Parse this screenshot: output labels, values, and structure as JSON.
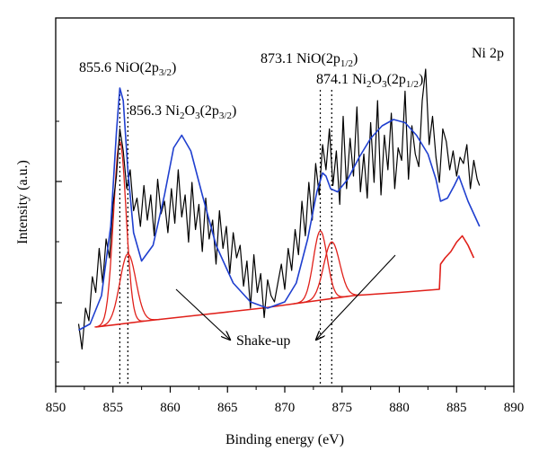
{
  "chart_data": {
    "type": "line",
    "xlabel": "Binding energy (eV)",
    "ylabel": "Intensity (a.u.)",
    "panel_label": "Ni 2p",
    "xlim": [
      850,
      890
    ],
    "x_ticks": [
      850,
      855,
      860,
      865,
      870,
      875,
      880,
      885,
      890
    ],
    "x_tick_labels": [
      "850",
      "855",
      "860",
      "865",
      "870",
      "875",
      "880",
      "885",
      "890"
    ],
    "y_ticks": [
      1,
      2,
      3
    ],
    "ylim": [
      0,
      1
    ],
    "grid": false,
    "legend": "none",
    "colors": {
      "raw": "#000000",
      "envelope": "#1f3fcf",
      "components": "#e0201a",
      "background": "#e0201a"
    },
    "series": [
      {
        "name": "",
        "role": "raw-data",
        "color": "#000000",
        "x": [
          852.0,
          852.3,
          852.6,
          852.9,
          853.2,
          853.5,
          853.8,
          854.1,
          854.4,
          854.7,
          855.0,
          855.3,
          855.6,
          855.9,
          856.2,
          856.5,
          856.8,
          857.1,
          857.4,
          857.7,
          858.0,
          858.3,
          858.6,
          858.9,
          859.2,
          859.5,
          859.8,
          860.1,
          860.4,
          860.7,
          861.0,
          861.3,
          861.6,
          861.9,
          862.2,
          862.5,
          862.8,
          863.1,
          863.4,
          863.7,
          864.0,
          864.3,
          864.6,
          864.9,
          865.2,
          865.5,
          865.8,
          866.1,
          866.4,
          866.7,
          867.0,
          867.3,
          867.6,
          867.9,
          868.2,
          868.5,
          868.8,
          869.1,
          869.4,
          869.7,
          870.0,
          870.3,
          870.6,
          870.9,
          871.2,
          871.5,
          871.8,
          872.1,
          872.4,
          872.7,
          873.0,
          873.3,
          873.6,
          873.9,
          874.2,
          874.5,
          874.8,
          875.1,
          875.4,
          875.7,
          876.0,
          876.3,
          876.6,
          876.9,
          877.2,
          877.5,
          877.8,
          878.1,
          878.4,
          878.7,
          879.0,
          879.3,
          879.6,
          879.9,
          880.2,
          880.5,
          880.8,
          881.1,
          881.4,
          881.7,
          882.0,
          882.3,
          882.6,
          882.9,
          883.2,
          883.5,
          883.8,
          884.1,
          884.4,
          884.7,
          885.0,
          885.3,
          885.6,
          885.9,
          886.2,
          886.5,
          886.8,
          887.0
        ],
        "y": [
          0.17,
          0.09,
          0.22,
          0.18,
          0.32,
          0.27,
          0.41,
          0.3,
          0.44,
          0.38,
          0.55,
          0.64,
          0.79,
          0.72,
          0.6,
          0.66,
          0.53,
          0.57,
          0.48,
          0.61,
          0.5,
          0.58,
          0.45,
          0.63,
          0.52,
          0.56,
          0.46,
          0.6,
          0.49,
          0.66,
          0.51,
          0.58,
          0.43,
          0.62,
          0.47,
          0.55,
          0.4,
          0.57,
          0.44,
          0.5,
          0.36,
          0.53,
          0.41,
          0.48,
          0.33,
          0.46,
          0.38,
          0.42,
          0.29,
          0.37,
          0.22,
          0.39,
          0.27,
          0.33,
          0.19,
          0.31,
          0.26,
          0.24,
          0.3,
          0.36,
          0.28,
          0.41,
          0.34,
          0.47,
          0.39,
          0.56,
          0.45,
          0.62,
          0.5,
          0.68,
          0.58,
          0.74,
          0.66,
          0.79,
          0.61,
          0.72,
          0.55,
          0.83,
          0.6,
          0.76,
          0.64,
          0.86,
          0.59,
          0.71,
          0.57,
          0.81,
          0.62,
          0.88,
          0.58,
          0.77,
          0.66,
          0.84,
          0.6,
          0.73,
          0.69,
          0.91,
          0.63,
          0.8,
          0.71,
          0.67,
          0.88,
          0.98,
          0.74,
          0.83,
          0.7,
          0.62,
          0.79,
          0.75,
          0.66,
          0.72,
          0.64,
          0.7,
          0.68,
          0.74,
          0.6,
          0.69,
          0.63,
          0.61
        ]
      },
      {
        "name": "",
        "role": "envelope-fit",
        "color": "#1f3fcf",
        "x": [
          852.0,
          853.0,
          854.0,
          854.8,
          855.3,
          855.6,
          855.9,
          856.3,
          856.8,
          857.5,
          858.5,
          859.5,
          860.3,
          861.0,
          861.8,
          862.8,
          864.0,
          865.5,
          867.0,
          868.5,
          870.0,
          871.0,
          872.0,
          872.8,
          873.3,
          873.6,
          874.0,
          874.6,
          875.5,
          876.5,
          877.5,
          878.5,
          879.5,
          880.5,
          881.5,
          882.5,
          883.2,
          883.6,
          884.2,
          884.8,
          885.2,
          885.6,
          886.0,
          886.5,
          887.0
        ],
        "y": [
          0.15,
          0.17,
          0.26,
          0.48,
          0.78,
          0.92,
          0.88,
          0.66,
          0.46,
          0.37,
          0.42,
          0.58,
          0.73,
          0.77,
          0.72,
          0.58,
          0.42,
          0.3,
          0.24,
          0.22,
          0.24,
          0.3,
          0.44,
          0.59,
          0.65,
          0.64,
          0.6,
          0.59,
          0.63,
          0.7,
          0.76,
          0.8,
          0.82,
          0.81,
          0.77,
          0.71,
          0.63,
          0.56,
          0.57,
          0.61,
          0.64,
          0.6,
          0.56,
          0.52,
          0.48
        ]
      },
      {
        "name": "",
        "role": "background",
        "color": "#e0201a",
        "x": [
          853.5,
          858.0,
          863.0,
          868.0,
          872.0,
          876.0,
          880.0,
          883.5,
          883.6,
          884.0,
          884.5,
          885.0,
          885.5,
          886.0,
          886.5
        ],
        "y": [
          0.16,
          0.18,
          0.2,
          0.22,
          0.24,
          0.26,
          0.27,
          0.28,
          0.36,
          0.38,
          0.4,
          0.43,
          0.45,
          0.42,
          0.38
        ]
      }
    ],
    "components": [
      {
        "role": "NiO 2p3/2 peak",
        "center": 855.6,
        "height": 0.58,
        "width": 0.55,
        "color": "#e0201a"
      },
      {
        "role": "Ni2O3 2p3/2 peak",
        "center": 856.3,
        "height": 0.22,
        "width": 0.7,
        "color": "#e0201a"
      },
      {
        "role": "NiO 2p1/2 peak",
        "center": 873.1,
        "height": 0.22,
        "width": 0.6,
        "color": "#e0201a"
      },
      {
        "role": "Ni2O3 2p1/2 peak",
        "center": 874.1,
        "height": 0.18,
        "width": 0.7,
        "color": "#e0201a"
      }
    ],
    "reference_lines": [
      855.6,
      856.3,
      873.1,
      874.1
    ],
    "annotations": [
      {
        "prefix": "855.6 NiO(2p",
        "sub": "3/2",
        "suffix": ")"
      },
      {
        "prefix": "856.3 Ni",
        "sub1": "2",
        "mid": "O",
        "sub2": "3",
        "mid2": "(2p",
        "sub3": "3/2",
        "suffix": ")"
      },
      {
        "prefix": "873.1 NiO(2p",
        "sub": "1/2",
        "suffix": ")"
      },
      {
        "prefix": "874.1 Ni",
        "sub1": "2",
        "mid": "O",
        "sub2": "3",
        "mid2": "(2p",
        "sub3": "1/2",
        "suffix": ")"
      },
      {
        "text": "Shake-up"
      }
    ]
  }
}
